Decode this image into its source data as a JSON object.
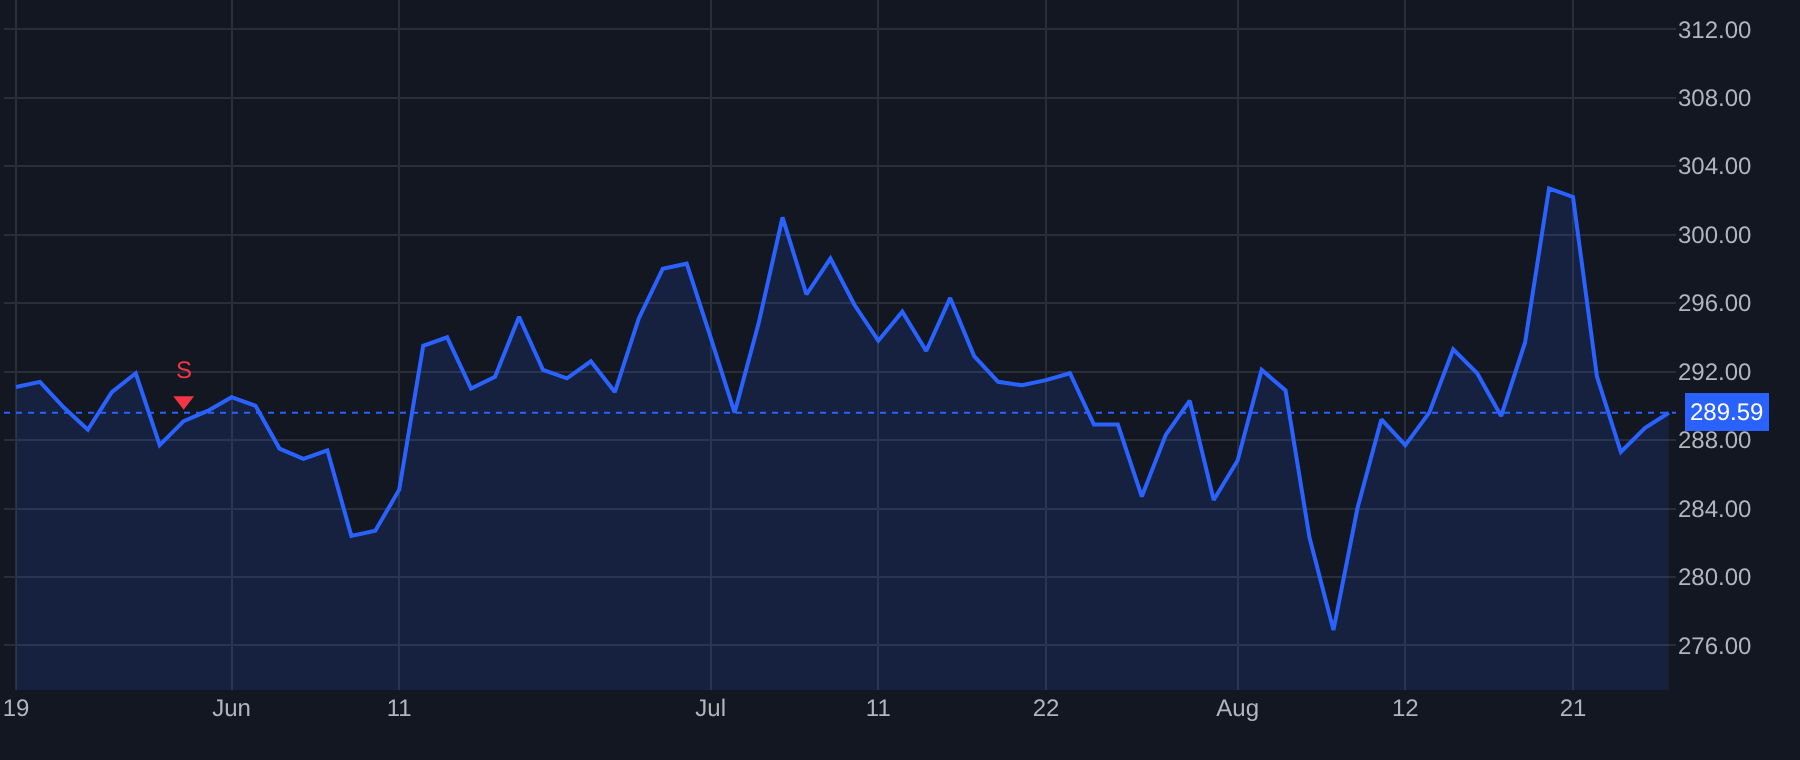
{
  "chart_data": {
    "type": "area",
    "categories": [
      "19",
      null,
      null,
      null,
      null,
      null,
      null,
      null,
      null,
      "Jun",
      null,
      null,
      null,
      null,
      null,
      null,
      "11",
      null,
      null,
      null,
      null,
      null,
      null,
      null,
      null,
      null,
      null,
      null,
      null,
      "Jul",
      null,
      null,
      null,
      null,
      null,
      null,
      "11",
      null,
      null,
      null,
      null,
      null,
      null,
      "22",
      null,
      null,
      null,
      null,
      null,
      null,
      null,
      "Aug",
      null,
      null,
      null,
      null,
      null,
      null,
      "12",
      null,
      null,
      null,
      null,
      null,
      null,
      "21",
      null,
      null,
      null,
      null
    ],
    "series": [
      {
        "color": "#2962ff",
        "values": [
          291.1,
          291.4,
          289.9,
          288.6,
          290.8,
          291.9,
          287.7,
          289.1,
          289.7,
          290.5,
          290.0,
          287.5,
          286.9,
          287.4,
          282.4,
          282.7,
          285.1,
          293.5,
          294.0,
          291.0,
          291.7,
          295.2,
          292.1,
          291.6,
          292.6,
          290.8,
          295.1,
          298.0,
          298.3,
          294.0,
          289.6,
          294.8,
          301.0,
          296.5,
          298.6,
          295.9,
          293.8,
          295.5,
          293.2,
          296.3,
          292.9,
          291.4,
          291.2,
          291.5,
          291.9,
          288.9,
          288.9,
          284.7,
          288.3,
          290.3,
          284.5,
          286.8,
          292.1,
          290.9,
          282.3,
          276.9,
          284.0,
          289.2,
          287.7,
          289.6,
          293.3,
          291.9,
          289.4,
          293.7,
          302.7,
          302.2,
          291.7,
          287.3,
          288.7,
          289.59
        ]
      },
      {
        "type": "scatter",
        "color": "#f23645",
        "marker": "triangle",
        "values": [
          null,
          null,
          null,
          null,
          null,
          null,
          null,
          290.3,
          null,
          null,
          null,
          null,
          null,
          null,
          null,
          null,
          null,
          null,
          null,
          null,
          null,
          null,
          null,
          null,
          null,
          null,
          null,
          null,
          null,
          null,
          null,
          null,
          null,
          null,
          null,
          null,
          null,
          null,
          null,
          null,
          null,
          null,
          null,
          null,
          null,
          null,
          null,
          null,
          null,
          null,
          null,
          null,
          null,
          null,
          null,
          null,
          null,
          null,
          null,
          null,
          null,
          null,
          null,
          null,
          null,
          null,
          null,
          null,
          null,
          null
        ]
      }
    ],
    "annotations": [
      "S"
    ],
    "ref_lines": [
      {
        "axis": "y",
        "value": 289.59,
        "label": "289.59",
        "color": "#2962ff",
        "line_style": "dotted"
      }
    ],
    "ylim": [
      273.4,
      313.7
    ],
    "yticks": [
      {
        "value": 276,
        "label": "276.00"
      },
      {
        "value": 280,
        "label": "280.00"
      },
      {
        "value": 284,
        "label": "284.00"
      },
      {
        "value": 288,
        "label": "288.00"
      },
      {
        "value": 292,
        "label": "292.00"
      },
      {
        "value": 296,
        "label": "296.00"
      },
      {
        "value": 300,
        "label": "300.00"
      },
      {
        "value": 304,
        "label": "304.00"
      },
      {
        "value": 308,
        "label": "308.00"
      },
      {
        "value": 312,
        "label": "312.00"
      }
    ],
    "grid": true
  }
}
